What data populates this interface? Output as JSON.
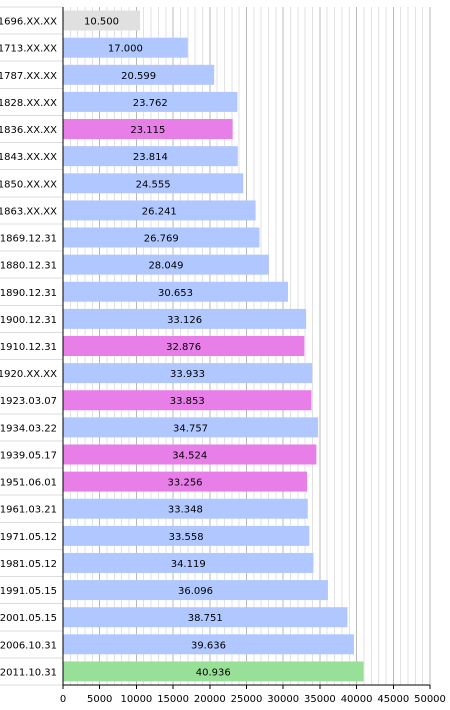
{
  "chart_data": {
    "type": "bar",
    "orientation": "horizontal",
    "title": "",
    "xlabel": "",
    "ylabel": "",
    "xlim": [
      0,
      50000
    ],
    "x_ticks": [
      0,
      5000,
      10000,
      15000,
      20000,
      25000,
      30000,
      35000,
      40000,
      45000,
      50000
    ],
    "x_tick_labels": [
      "0",
      "5000",
      "10000",
      "15000",
      "20000",
      "25000",
      "30000",
      "35000",
      "40000",
      "45000",
      "50000"
    ],
    "grid": true,
    "legend": "none",
    "categories": [
      "1696.XX.XX",
      "1713.XX.XX",
      "1787.XX.XX",
      "1828.XX.XX",
      "1836.XX.XX",
      "1843.XX.XX",
      "1850.XX.XX",
      "1863.XX.XX",
      "1869.12.31",
      "1880.12.31",
      "1890.12.31",
      "1900.12.31",
      "1910.12.31",
      "1920.XX.XX",
      "1923.03.07",
      "1934.03.22",
      "1939.05.17",
      "1951.06.01",
      "1961.03.21",
      "1971.05.12",
      "1981.05.12",
      "1991.05.15",
      "2001.05.15",
      "2006.10.31",
      "2011.10.31"
    ],
    "values": [
      10500,
      17000,
      20599,
      23762,
      23115,
      23814,
      24555,
      26241,
      26769,
      28049,
      30653,
      33126,
      32876,
      33933,
      33853,
      34757,
      34524,
      33256,
      33348,
      33558,
      34119,
      36096,
      38751,
      39636,
      40936
    ],
    "value_labels": [
      "10.500",
      "17.000",
      "20.599",
      "23.762",
      "23.115",
      "23.814",
      "24.555",
      "26.241",
      "26.769",
      "28.049",
      "30.653",
      "33.126",
      "32.876",
      "33.933",
      "33.853",
      "34.757",
      "34.524",
      "33.256",
      "33.348",
      "33.558",
      "34.119",
      "36.096",
      "38.751",
      "39.636",
      "40.936"
    ],
    "bar_kinds": [
      "estimate",
      "normal",
      "normal",
      "normal",
      "census",
      "normal",
      "normal",
      "normal",
      "normal",
      "normal",
      "normal",
      "normal",
      "census",
      "normal",
      "census",
      "normal",
      "census",
      "census",
      "normal",
      "normal",
      "normal",
      "normal",
      "normal",
      "normal",
      "latest"
    ],
    "colors": {
      "estimate": "#e0e0e0",
      "normal": "#b0c8ff",
      "census": "#e87ee8",
      "latest": "#98e098",
      "grid": "#c8c8c8",
      "axis": "#000000"
    }
  }
}
